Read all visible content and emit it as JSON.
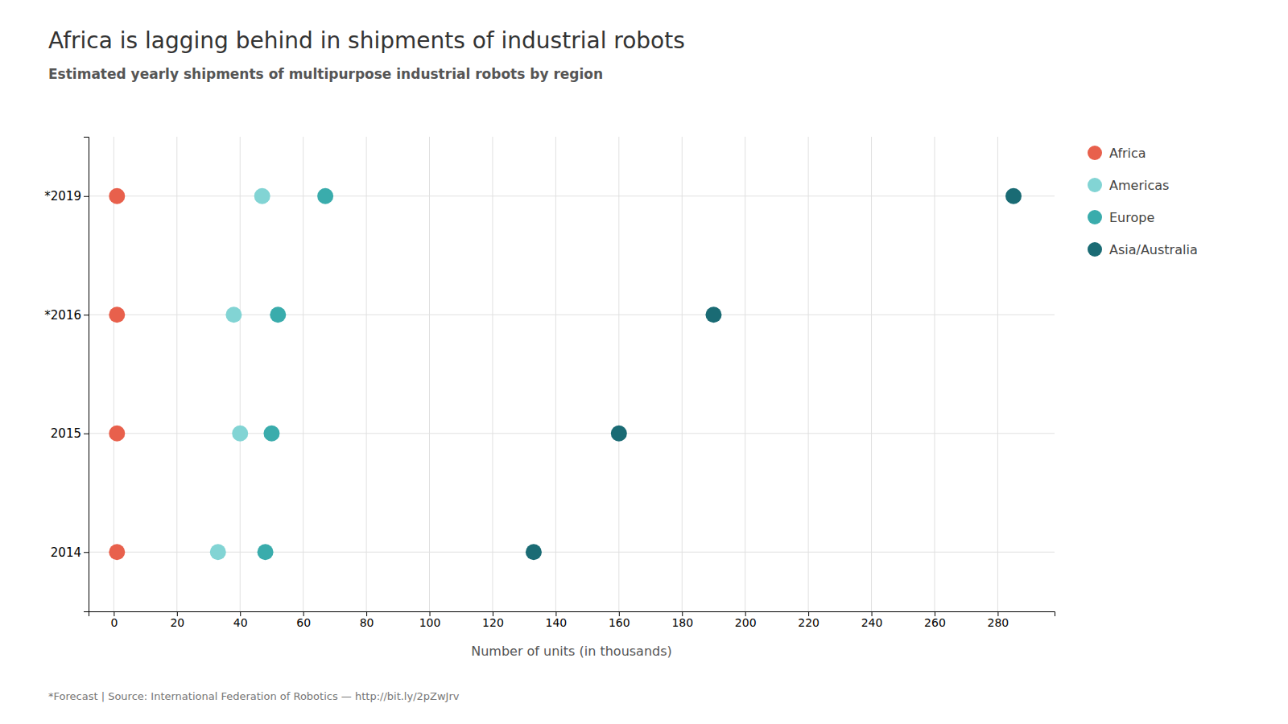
{
  "chart_data": {
    "type": "dot",
    "title": "Africa is lagging behind in shipments of industrial robots",
    "subtitle": "Estimated yearly shipments of multipurpose industrial robots by region",
    "xlabel": "Number of units (in thousands)",
    "footnote": "*Forecast | Source: International Federation of Robotics — http://bit.ly/2pZwJrv",
    "orientation": "horizontal",
    "categories": [
      "*2019",
      "*2016",
      "2015",
      "2014"
    ],
    "series": [
      {
        "name": "Africa",
        "color": "#e8604c",
        "values": [
          1,
          1,
          1,
          1
        ]
      },
      {
        "name": "Americas",
        "color": "#82d4d4",
        "values": [
          47,
          38,
          40,
          33
        ]
      },
      {
        "name": "Europe",
        "color": "#3aacac",
        "values": [
          67,
          52,
          50,
          48
        ]
      },
      {
        "name": "Asia/Australia",
        "color": "#1a6b74",
        "values": [
          285,
          190,
          160,
          133
        ]
      }
    ],
    "xlim": [
      -8,
      298
    ],
    "xticks": [
      0,
      20,
      40,
      60,
      80,
      100,
      120,
      140,
      160,
      180,
      200,
      220,
      240,
      260,
      280
    ],
    "grid": true,
    "legend": "right",
    "marker": "circle"
  }
}
